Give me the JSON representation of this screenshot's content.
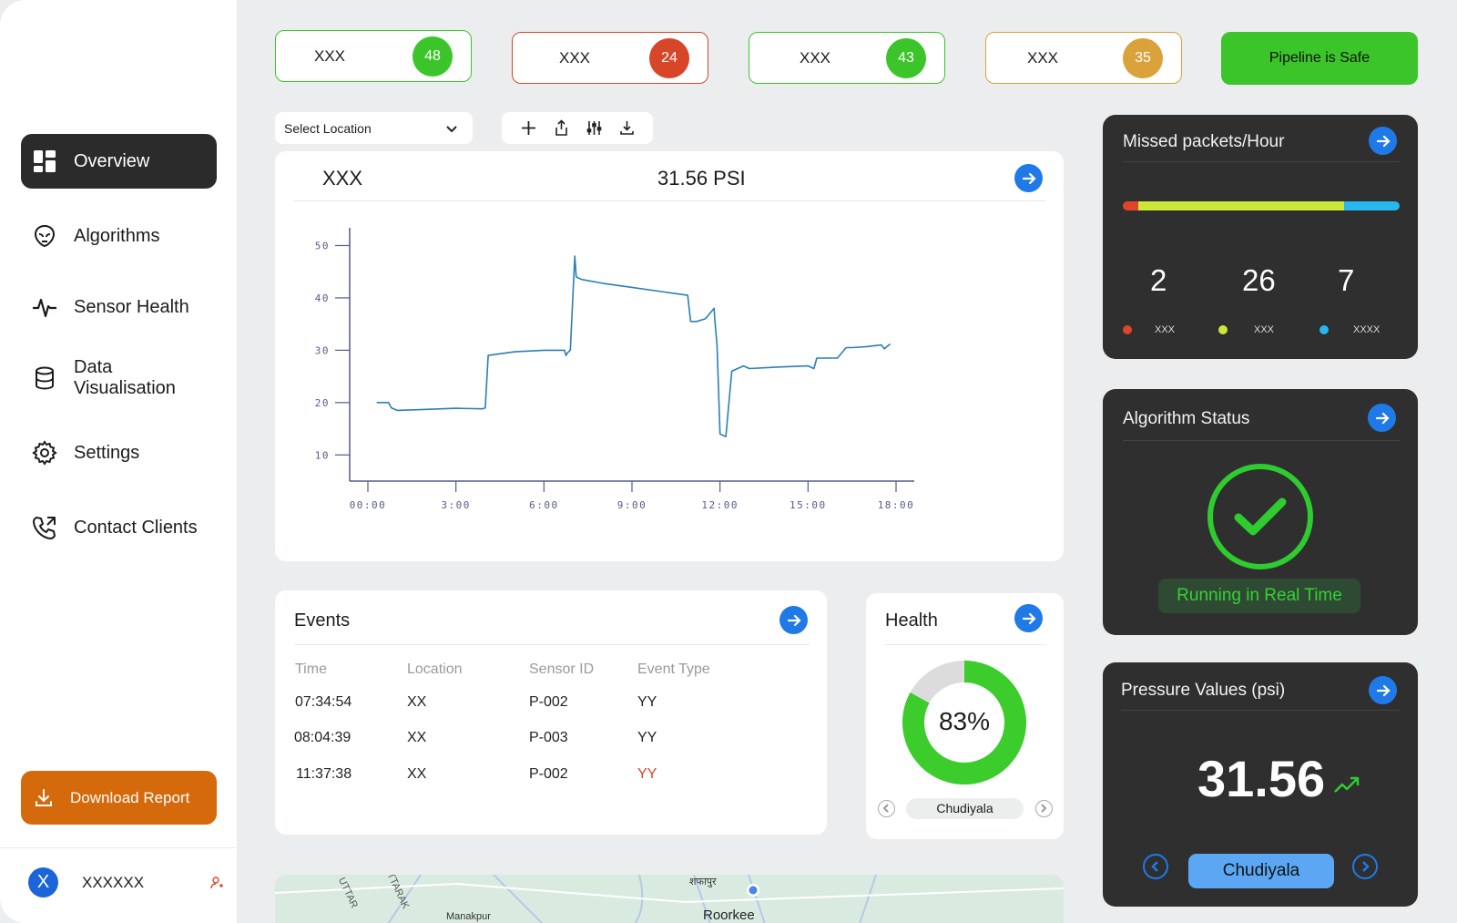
{
  "sidebar": {
    "items": [
      {
        "label": "Overview",
        "icon": "dashboard-icon",
        "active": true
      },
      {
        "label": "Algorithms",
        "icon": "alien-icon"
      },
      {
        "label": "Sensor Health",
        "icon": "pulse-icon"
      },
      {
        "label": "Data Visualisation",
        "icon": "database-icon"
      },
      {
        "label": "Settings",
        "icon": "gear-icon"
      },
      {
        "label": "Contact Clients",
        "icon": "phone-icon"
      }
    ],
    "download_label": "Download Report",
    "user": {
      "initial": "X",
      "name": "XXXXXX"
    }
  },
  "status_cards": [
    {
      "label": "XXX",
      "count": "48",
      "color": "#3bc52a"
    },
    {
      "label": "XXX",
      "count": "24",
      "color": "#d8462a"
    },
    {
      "label": "XXX",
      "count": "43",
      "color": "#3bc52a"
    },
    {
      "label": "XXX",
      "count": "35",
      "color": "#d9a23a"
    }
  ],
  "safe_label": "Pipeline is Safe",
  "toolbar": {
    "location_select": "Select Location"
  },
  "main_chart": {
    "sensor": "XXX",
    "reading": "31.56 PSI"
  },
  "chart_data": {
    "type": "line",
    "title": "",
    "xlabel": "",
    "ylabel": "",
    "x_ticks": [
      "00:00",
      "3:00",
      "6:00",
      "9:00",
      "12:00",
      "15:00",
      "18:00"
    ],
    "y_ticks": [
      10,
      20,
      30,
      40,
      50
    ],
    "xlim": [
      0,
      18
    ],
    "ylim": [
      5,
      52
    ],
    "series": [
      {
        "color": "#2a7fb6",
        "x": [
          0.3,
          0.7,
          0.8,
          1.0,
          2.0,
          3.0,
          3.9,
          4.0,
          4.1,
          5.0,
          6.0,
          6.7,
          6.75,
          6.8,
          6.9,
          7.05,
          7.1,
          7.3,
          8.0,
          9.0,
          10.0,
          10.9,
          11.0,
          11.2,
          11.5,
          11.8,
          11.82,
          11.9,
          12.0,
          12.2,
          12.4,
          12.8,
          13.0,
          14.0,
          15.0,
          15.2,
          15.3,
          15.5,
          16.0,
          16.3,
          16.5,
          17.0,
          17.5,
          17.6,
          17.8
        ],
        "y": [
          20,
          20,
          19,
          18.5,
          18.7,
          18.9,
          18.8,
          19,
          29,
          29.7,
          30,
          30,
          29,
          29.5,
          30,
          48,
          44,
          43.5,
          42.8,
          42,
          41.2,
          40.5,
          35.5,
          35.5,
          36,
          38,
          36,
          31,
          14,
          13.5,
          26,
          27,
          26.5,
          26.8,
          27,
          26.5,
          28.5,
          28.5,
          28.5,
          30.5,
          30.5,
          30.7,
          31,
          30.3,
          31.2
        ]
      }
    ]
  },
  "events": {
    "title": "Events",
    "columns": [
      "Time",
      "Location",
      "Sensor ID",
      "Event Type"
    ],
    "rows": [
      [
        "07:34:54",
        "XX",
        "P-002",
        "YY"
      ],
      [
        "08:04:39",
        "XX",
        "P-003",
        "YY"
      ],
      [
        "11:37:38",
        "XX",
        "P-002",
        "YY"
      ]
    ],
    "highlight_color": "#d8462a"
  },
  "health": {
    "title": "Health",
    "percent": 83,
    "percent_label": "83%",
    "location": "Chudiyala"
  },
  "missed_packets": {
    "title": "Missed packets/Hour",
    "values": [
      {
        "value": "2",
        "label": "XXX",
        "color": "#e0452a"
      },
      {
        "value": "26",
        "label": "XXX",
        "color": "#cde63a"
      },
      {
        "value": "7",
        "label": "XXXX",
        "color": "#26b7ee"
      }
    ]
  },
  "algorithm_status": {
    "title": "Algorithm Status",
    "status": "Running in Real Time"
  },
  "pressure_values": {
    "title": "Pressure Values (psi)",
    "value": "31.56",
    "location": "Chudiyala"
  },
  "map": {
    "labels": [
      "Manakpur",
      "Roorkee",
      "शफापुर",
      "UTTARAK",
      "UTTAR"
    ]
  }
}
